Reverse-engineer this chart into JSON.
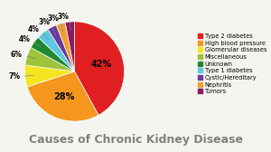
{
  "title": "Causes of Chronic Kidney Disease",
  "labels": [
    "Type 2 diabetes",
    "High blood pressure",
    "Glomerular diseases",
    "Miscellaneous",
    "Unknown",
    "Type 1 diabetes",
    "Cystic/Hereditary",
    "Nephritis",
    "Tumors"
  ],
  "values": [
    42,
    28,
    7,
    6,
    4,
    4,
    3,
    3,
    3
  ],
  "colors": [
    "#e02020",
    "#f5961e",
    "#f5e520",
    "#9dc43a",
    "#1e8a2d",
    "#5ec8e0",
    "#6b3aa0",
    "#f0a030",
    "#8b1a60"
  ],
  "pct_labels": [
    "42%",
    "28%",
    "7%",
    "6%",
    "4%",
    "4%",
    "3%",
    "3%",
    "3%"
  ],
  "background_color": "#f5f5f0",
  "title_color": "#808080",
  "title_fontsize": 9,
  "startangle": 90,
  "pct_inside_threshold": 10
}
